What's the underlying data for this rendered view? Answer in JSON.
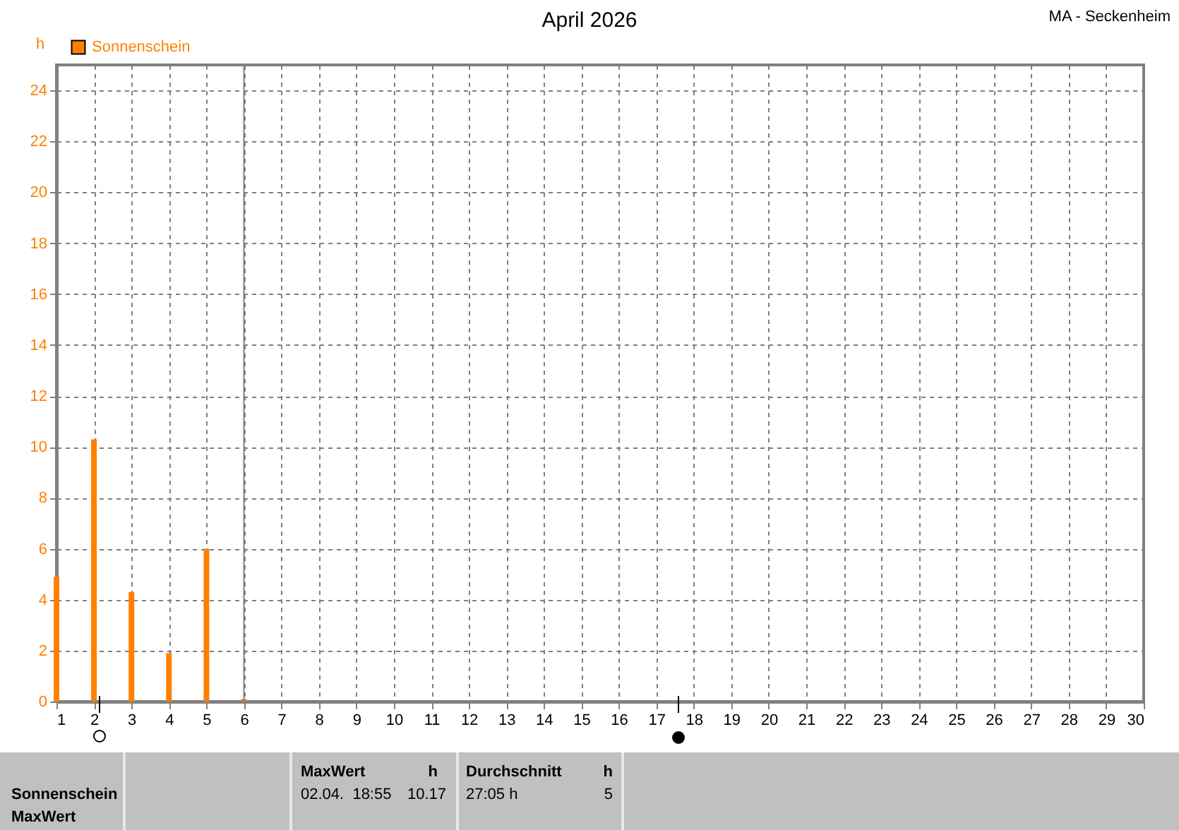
{
  "chart_data": {
    "type": "bar",
    "title": "April 2026",
    "subtitle": "MA - Seckenheim",
    "ylabel": "h",
    "x": [
      1,
      2,
      3,
      4,
      5,
      6
    ],
    "series": [
      {
        "name": "Sonnenschein",
        "color": "#ff8000",
        "values": [
          4.9,
          10.3,
          4.3,
          1.9,
          6.0,
          0.1
        ]
      }
    ],
    "xlim": [
      1,
      30
    ],
    "xticks": [
      1,
      2,
      3,
      4,
      5,
      6,
      7,
      8,
      9,
      10,
      11,
      12,
      13,
      14,
      15,
      16,
      17,
      18,
      19,
      20,
      21,
      22,
      23,
      24,
      25,
      26,
      27,
      28,
      29,
      30
    ],
    "ylim": [
      0,
      25
    ],
    "yticks": [
      0,
      2,
      4,
      6,
      8,
      10,
      12,
      14,
      16,
      18,
      20,
      22,
      24
    ],
    "grid": true,
    "legend": "top left",
    "ref_lines": [
      {
        "axis": "x",
        "value": 6,
        "color": "#808080"
      }
    ],
    "annotations": [
      "Sonnenschein",
      "MaxWert",
      "MaxWert",
      "h",
      "02.04.  18:55",
      "10.17",
      "Durchschnitt",
      "h",
      "27:05 h",
      "5"
    ]
  }
}
